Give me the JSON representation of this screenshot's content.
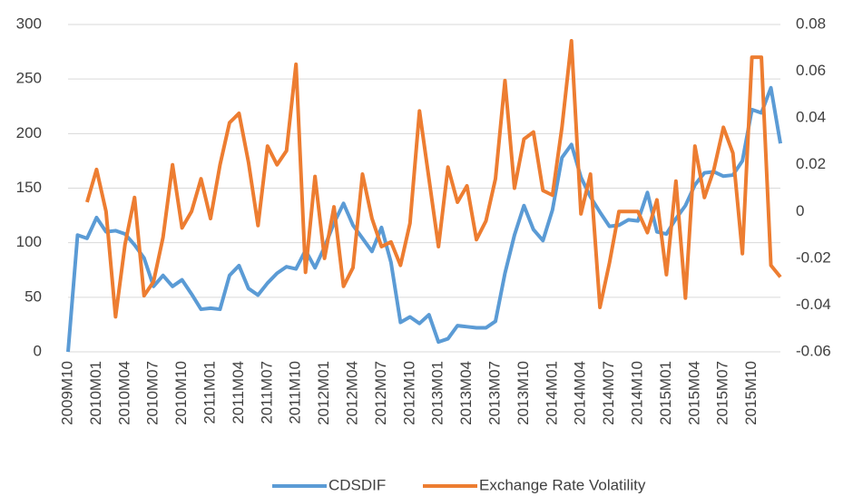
{
  "chart_data": {
    "type": "line",
    "categories": [
      "2009M10",
      null,
      null,
      "2010M01",
      null,
      null,
      "2010M04",
      null,
      null,
      "2010M07",
      null,
      null,
      "2010M10",
      null,
      null,
      "2011M01",
      null,
      null,
      "2011M04",
      null,
      null,
      "2011M07",
      null,
      null,
      "2011M10",
      null,
      null,
      "2012M01",
      null,
      null,
      "2012M04",
      null,
      null,
      "2012M07",
      null,
      null,
      "2012M10",
      null,
      null,
      "2013M01",
      null,
      null,
      "2013M04",
      null,
      null,
      "2013M07",
      null,
      null,
      "2013M10",
      null,
      null,
      "2014M01",
      null,
      null,
      "2014M04",
      null,
      null,
      "2014M07",
      null,
      null,
      "2014M10",
      null,
      null,
      "2015M01",
      null,
      null,
      "2015M04",
      null,
      null,
      "2015M07",
      null,
      null,
      "2015M10",
      null,
      null,
      null
    ],
    "series": [
      {
        "name": "CDSDIF",
        "color": "#5b9bd5",
        "values": [
          0,
          107,
          104,
          123,
          110,
          111,
          108,
          98,
          86,
          60,
          70,
          60,
          66,
          53,
          39,
          40,
          39,
          70,
          79,
          58,
          52,
          63,
          72,
          78,
          76,
          93,
          77,
          96,
          118,
          136,
          116,
          104,
          92,
          114,
          82,
          27,
          32,
          26,
          34,
          9,
          12,
          24,
          23,
          22,
          22,
          28,
          72,
          107,
          134,
          112,
          102,
          130,
          178,
          190,
          160,
          142,
          128,
          115,
          116,
          121,
          120,
          146,
          110,
          108,
          122,
          134,
          153,
          164,
          165,
          161,
          162,
          175,
          222,
          219,
          242,
          191
        ]
      },
      {
        "name": "Exchange Rate Volatility",
        "color": "#ed7d31",
        "axis": "y2",
        "values": [
          null,
          null,
          0.004,
          0.018,
          0.0,
          -0.045,
          -0.014,
          0.006,
          -0.036,
          -0.03,
          -0.011,
          0.02,
          -0.007,
          0.0,
          0.014,
          -0.003,
          0.02,
          0.038,
          0.042,
          0.021,
          -0.006,
          0.028,
          0.02,
          0.026,
          0.063,
          -0.026,
          0.015,
          -0.02,
          0.002,
          -0.032,
          -0.024,
          0.016,
          -0.003,
          -0.015,
          -0.013,
          -0.023,
          -0.005,
          0.043,
          0.014,
          -0.015,
          0.019,
          0.004,
          0.011,
          -0.012,
          -0.004,
          0.014,
          0.056,
          0.01,
          0.031,
          0.034,
          0.009,
          0.007,
          0.036,
          0.073,
          -0.001,
          0.016,
          -0.041,
          -0.022,
          0.0,
          0.0,
          0.0,
          -0.009,
          0.005,
          -0.027,
          0.013,
          -0.037,
          0.028,
          0.006,
          0.018,
          0.036,
          0.025,
          -0.018,
          0.066,
          0.066,
          -0.023,
          -0.028
        ]
      }
    ],
    "ylim": [
      0,
      300
    ],
    "yticks": [
      0,
      50,
      100,
      150,
      200,
      250,
      300
    ],
    "y2lim": [
      -0.06,
      0.08
    ],
    "y2ticks": [
      -0.06,
      -0.04,
      -0.02,
      0,
      0.02,
      0.04,
      0.06,
      0.08
    ],
    "grid": true,
    "legend": "bottom"
  }
}
